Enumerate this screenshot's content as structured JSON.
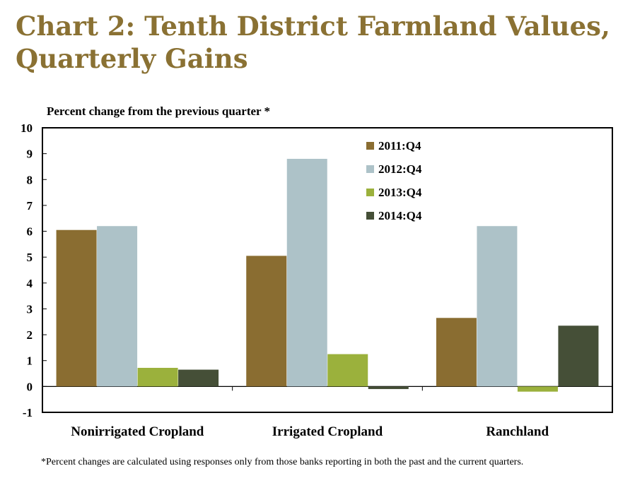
{
  "title_line1": "Chart 2: Tenth District Farmland Values,",
  "title_line2": "Quarterly Gains",
  "footnote": "*Percent changes are calculated using responses only from those banks reporting in both the past and the current quarters.",
  "chart_data": {
    "type": "bar",
    "ylabel": "Percent change from the previous quarter *",
    "categories": [
      "Nonirrigated Cropland",
      "Irrigated Cropland",
      "Ranchland"
    ],
    "series": [
      {
        "name": "2011:Q4",
        "color": "#8a6d31",
        "values": [
          6.05,
          5.05,
          2.65
        ]
      },
      {
        "name": "2012:Q4",
        "color": "#adc2c8",
        "values": [
          6.2,
          8.8,
          6.2
        ]
      },
      {
        "name": "2013:Q4",
        "color": "#9bb13c",
        "values": [
          0.72,
          1.25,
          -0.2
        ]
      },
      {
        "name": "2014:Q4",
        "color": "#454f37",
        "values": [
          0.65,
          -0.1,
          2.35
        ]
      }
    ],
    "ylim": [
      -1,
      10
    ],
    "yticks": [
      -1,
      0,
      1,
      2,
      3,
      4,
      5,
      6,
      7,
      8,
      9,
      10
    ],
    "legend_position": "top-center",
    "grid": false
  }
}
